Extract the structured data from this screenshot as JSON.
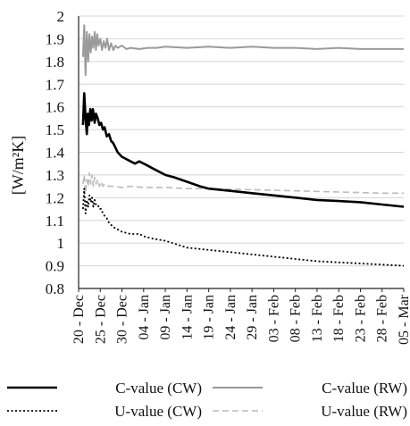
{
  "chart_data": {
    "type": "line",
    "title": "",
    "xlabel": "",
    "ylabel": "[W/m²K]",
    "ylim": [
      0.8,
      2.0
    ],
    "yticks": [
      "2",
      "1.9",
      "1.8",
      "1.7",
      "1.6",
      "1.5",
      "1.4",
      "1.3",
      "1.2",
      "1.1",
      "1",
      "0.9",
      "0.8"
    ],
    "ytick_values": [
      2.0,
      1.9,
      1.8,
      1.7,
      1.6,
      1.5,
      1.4,
      1.3,
      1.2,
      1.1,
      1.0,
      0.9,
      0.8
    ],
    "xlim": [
      0,
      75
    ],
    "xticks": [
      {
        "label": "20 - Dec",
        "day": 0
      },
      {
        "label": "25 - Dec",
        "day": 5
      },
      {
        "label": "30 - Dec",
        "day": 10
      },
      {
        "label": "04 - Jan",
        "day": 15
      },
      {
        "label": "09 - Jan",
        "day": 20
      },
      {
        "label": "14 - Jan",
        "day": 25
      },
      {
        "label": "19 - Jan",
        "day": 30
      },
      {
        "label": "24 - Jan",
        "day": 35
      },
      {
        "label": "29 - Jan",
        "day": 40
      },
      {
        "label": "03 - Feb",
        "day": 45
      },
      {
        "label": "08 - Feb",
        "day": 50
      },
      {
        "label": "13 - Feb",
        "day": 55
      },
      {
        "label": "18 - Feb",
        "day": 60
      },
      {
        "label": "23 - Feb",
        "day": 65
      },
      {
        "label": "28 - Feb",
        "day": 70
      },
      {
        "label": "05 - Mar",
        "day": 75
      }
    ],
    "grid": "horizontal",
    "legend_position": "bottom",
    "series": [
      {
        "name": "C-value (CW)",
        "color": "#000000",
        "dash": "solid",
        "width": 2.6,
        "x": [
          1.0,
          1.3,
          1.6,
          1.9,
          2.1,
          2.4,
          2.7,
          3.0,
          3.3,
          3.7,
          4.0,
          4.4,
          4.8,
          5.2,
          5.6,
          6.0,
          6.5,
          7.0,
          7.5,
          8.0,
          8.5,
          9.0,
          9.5,
          10.0,
          11.0,
          12.0,
          13.0,
          14.0,
          15.0,
          16.0,
          17.0,
          18.0,
          20.0,
          22.0,
          25.0,
          28.0,
          30.0,
          35.0,
          40.0,
          45.0,
          50.0,
          55.0,
          60.0,
          65.0,
          70.0,
          75.0
        ],
        "y": [
          1.52,
          1.66,
          1.55,
          1.48,
          1.57,
          1.52,
          1.59,
          1.54,
          1.59,
          1.53,
          1.57,
          1.55,
          1.52,
          1.53,
          1.5,
          1.51,
          1.47,
          1.48,
          1.45,
          1.44,
          1.42,
          1.4,
          1.39,
          1.38,
          1.37,
          1.36,
          1.35,
          1.36,
          1.35,
          1.34,
          1.33,
          1.32,
          1.3,
          1.29,
          1.27,
          1.25,
          1.24,
          1.23,
          1.22,
          1.21,
          1.2,
          1.19,
          1.185,
          1.18,
          1.17,
          1.16
        ]
      },
      {
        "name": "C-value (RW)",
        "color": "#9a9a9a",
        "dash": "solid",
        "width": 2.0,
        "x": [
          1.0,
          1.3,
          1.6,
          1.9,
          2.2,
          2.5,
          2.8,
          3.1,
          3.4,
          3.7,
          4.0,
          4.3,
          4.6,
          5.0,
          5.4,
          5.8,
          6.2,
          6.6,
          7.0,
          7.5,
          8.0,
          8.5,
          9.0,
          10.0,
          11.0,
          12.0,
          14.0,
          16.0,
          18.0,
          20.0,
          25.0,
          30.0,
          35.0,
          40.0,
          45.0,
          50.0,
          55.0,
          60.0,
          65.0,
          70.0,
          75.0
        ],
        "y": [
          1.82,
          1.96,
          1.74,
          1.93,
          1.8,
          1.92,
          1.84,
          1.91,
          1.86,
          1.93,
          1.85,
          1.92,
          1.87,
          1.9,
          1.85,
          1.89,
          1.86,
          1.9,
          1.85,
          1.88,
          1.85,
          1.87,
          1.86,
          1.87,
          1.855,
          1.86,
          1.855,
          1.86,
          1.86,
          1.865,
          1.86,
          1.865,
          1.86,
          1.865,
          1.86,
          1.86,
          1.855,
          1.86,
          1.855,
          1.855,
          1.855
        ]
      },
      {
        "name": "U-value (CW)",
        "color": "#000000",
        "dash": "2,2.5",
        "width": 1.8,
        "x": [
          1.0,
          1.3,
          1.6,
          1.9,
          2.2,
          2.5,
          2.8,
          3.1,
          3.4,
          3.7,
          4.0,
          4.4,
          4.8,
          5.2,
          5.6,
          6.0,
          6.5,
          7.0,
          7.5,
          8.0,
          9.0,
          10.0,
          12.0,
          14.0,
          15.0,
          17.0,
          20.0,
          25.0,
          30.0,
          35.0,
          40.0,
          45.0,
          50.0,
          55.0,
          60.0,
          65.0,
          70.0,
          75.0
        ],
        "y": [
          1.15,
          1.24,
          1.13,
          1.19,
          1.16,
          1.21,
          1.18,
          1.2,
          1.16,
          1.19,
          1.17,
          1.17,
          1.15,
          1.15,
          1.13,
          1.12,
          1.11,
          1.09,
          1.08,
          1.07,
          1.06,
          1.05,
          1.04,
          1.04,
          1.03,
          1.02,
          1.01,
          0.98,
          0.97,
          0.96,
          0.95,
          0.94,
          0.93,
          0.92,
          0.915,
          0.91,
          0.905,
          0.9
        ]
      },
      {
        "name": "U-value (RW)",
        "color": "#bbbbbb",
        "dash": "7,4",
        "width": 1.6,
        "x": [
          1.0,
          1.3,
          1.6,
          1.9,
          2.2,
          2.5,
          2.8,
          3.1,
          3.4,
          3.7,
          4.0,
          4.4,
          4.8,
          5.2,
          5.6,
          6.0,
          7.0,
          8.0,
          10.0,
          12.0,
          15.0,
          20.0,
          25.0,
          30.0,
          40.0,
          50.0,
          60.0,
          70.0,
          75.0
        ],
        "y": [
          1.26,
          1.3,
          1.22,
          1.28,
          1.25,
          1.31,
          1.26,
          1.3,
          1.25,
          1.29,
          1.26,
          1.28,
          1.25,
          1.27,
          1.25,
          1.26,
          1.25,
          1.25,
          1.245,
          1.25,
          1.245,
          1.245,
          1.24,
          1.24,
          1.235,
          1.23,
          1.225,
          1.22,
          1.22
        ]
      }
    ]
  }
}
